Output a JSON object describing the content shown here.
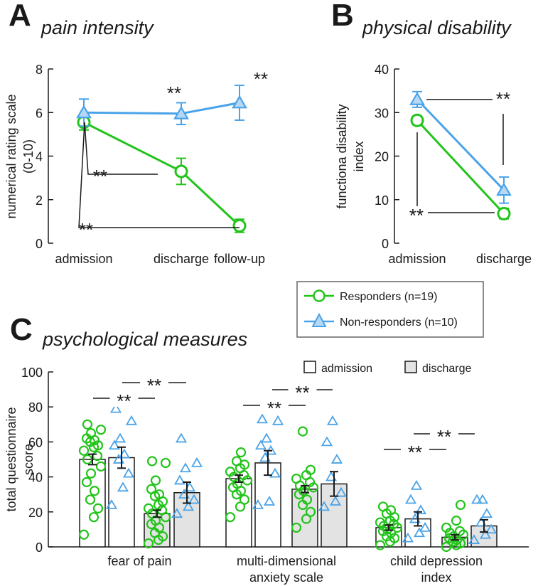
{
  "colors": {
    "responders": "#22c41a",
    "non_responders": "#4aa3e8",
    "bar_admission": "#ffffff",
    "bar_discharge": "#e3e3e3",
    "axis": "#1a1a1a"
  },
  "legend": {
    "responders": "Responders (n=19)",
    "non_responders": "Non-responders (n=10)",
    "admission": "admission",
    "discharge": "discharge"
  },
  "significance_label": "**",
  "chart_data": [
    {
      "panel": "A",
      "type": "line",
      "title": "pain intensity",
      "ylabel_line1": "numerical rating scale",
      "ylabel_line2": "(0-10)",
      "xlabel": "",
      "categories": [
        "admission",
        "discharge",
        "follow-up"
      ],
      "ylim": [
        0,
        8
      ],
      "yticks": [
        "0",
        "2",
        "4",
        "6",
        "8"
      ],
      "series": [
        {
          "name": "Responders",
          "values": [
            5.55,
            3.3,
            0.8
          ],
          "errors": [
            0.35,
            0.6,
            0.3
          ]
        },
        {
          "name": "Non-responders",
          "values": [
            6.0,
            5.95,
            6.45
          ],
          "errors": [
            0.62,
            0.5,
            0.8
          ]
        }
      ],
      "annotations": [
        "**",
        "**",
        "**",
        "**"
      ]
    },
    {
      "panel": "B",
      "type": "line",
      "title": "physical disability",
      "ylabel_line1": "functiona disability",
      "ylabel_line2": "index",
      "xlabel": "",
      "categories": [
        "admission",
        "discharge"
      ],
      "ylim": [
        0,
        40
      ],
      "yticks": [
        "0",
        "10",
        "20",
        "30",
        "40"
      ],
      "series": [
        {
          "name": "Responders",
          "values": [
            28.2,
            6.8
          ],
          "errors": [
            1.0,
            1.2
          ]
        },
        {
          "name": "Non-responders",
          "values": [
            33.0,
            12.2
          ],
          "errors": [
            1.8,
            3.0
          ]
        }
      ],
      "annotations": [
        "**",
        "**"
      ]
    },
    {
      "panel": "C",
      "type": "bar",
      "title": "psychological measures",
      "ylabel_line1": "total questionnaire",
      "ylabel_line2": "score",
      "xlabel": "",
      "ylim": [
        0,
        100
      ],
      "yticks": [
        "0",
        "20",
        "40",
        "60",
        "80",
        "100"
      ],
      "groups": [
        {
          "label_line1": "fear of pain",
          "label_line2": "",
          "bars": [
            {
              "series": "Responders",
              "phase": "admission",
              "value": 50,
              "error": 3,
              "points": [
                7,
                17,
                22,
                27,
                32,
                37,
                42,
                46,
                50,
                52,
                55,
                57,
                58,
                60,
                61,
                62,
                65,
                67,
                70
              ]
            },
            {
              "series": "Non-responders",
              "phase": "admission",
              "value": 51,
              "error": 6,
              "points": [
                24,
                34,
                42,
                50,
                53,
                58,
                62,
                72,
                79
              ]
            },
            {
              "series": "Responders",
              "phase": "discharge",
              "value": 19,
              "error": 2,
              "points": [
                2,
                4,
                6,
                8,
                11,
                13,
                15,
                17,
                19,
                21,
                22,
                24,
                26,
                29,
                30,
                33,
                38,
                48,
                49
              ]
            },
            {
              "series": "Non-responders",
              "phase": "discharge",
              "value": 31,
              "error": 6,
              "points": [
                19,
                23,
                27,
                30,
                34,
                38,
                45,
                48,
                62
              ]
            }
          ]
        },
        {
          "label_line1": "multi-dimensional",
          "label_line2": "anxiety scale",
          "bars": [
            {
              "series": "Responders",
              "phase": "admission",
              "value": 39,
              "error": 2,
              "points": [
                17,
                23,
                27,
                30,
                32,
                34,
                36,
                38,
                40,
                41,
                43,
                45,
                47,
                49,
                54
              ]
            },
            {
              "series": "Non-responders",
              "phase": "admission",
              "value": 48,
              "error": 7,
              "points": [
                24,
                26,
                42,
                51,
                55,
                58,
                62,
                72,
                73
              ]
            },
            {
              "series": "Responders",
              "phase": "discharge",
              "value": 33,
              "error": 2,
              "points": [
                11,
                16,
                20,
                24,
                27,
                30,
                32,
                34,
                35,
                37,
                39,
                41,
                44,
                66
              ]
            },
            {
              "series": "Non-responders",
              "phase": "discharge",
              "value": 36,
              "error": 7,
              "points": [
                23,
                26,
                31,
                40,
                50,
                60,
                72
              ]
            }
          ]
        },
        {
          "label_line1": "child depression",
          "label_line2": "index",
          "bars": [
            {
              "series": "Responders",
              "phase": "admission",
              "value": 11,
              "error": 1.5,
              "points": [
                1,
                3,
                5,
                6,
                8,
                9,
                10,
                11,
                12,
                13,
                14,
                15,
                17,
                19,
                21,
                23
              ]
            },
            {
              "series": "Non-responders",
              "phase": "admission",
              "value": 16,
              "error": 4,
              "points": [
                5,
                8,
                11,
                16,
                21,
                27,
                35
              ]
            },
            {
              "series": "Responders",
              "phase": "discharge",
              "value": 5.5,
              "error": 1.5,
              "points": [
                0,
                1,
                2,
                3,
                4,
                5,
                6,
                7,
                8,
                9,
                11,
                15,
                24
              ]
            },
            {
              "series": "Non-responders",
              "phase": "discharge",
              "value": 12,
              "error": 3.5,
              "points": [
                4,
                7,
                10,
                14,
                19,
                27,
                27
              ]
            }
          ]
        }
      ],
      "annotations": [
        "**",
        "**",
        "**",
        "**",
        "**",
        "**"
      ]
    }
  ]
}
